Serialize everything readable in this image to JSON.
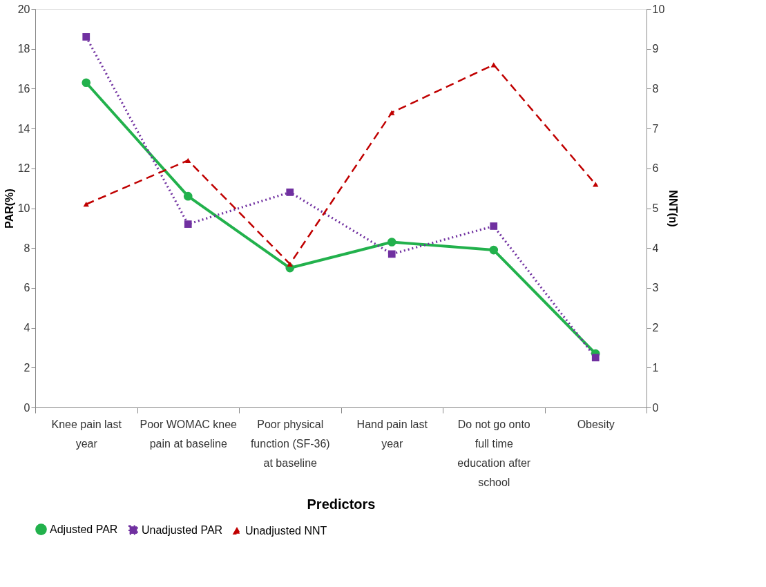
{
  "chart_data": {
    "type": "line",
    "xlabel": "Predictors",
    "ylabel": "PAR(%)",
    "y2label": "NNT(n)",
    "categories": [
      "Knee pain last year",
      "Poor WOMAC knee pain at baseline",
      "Poor physical function (SF-36)  at baseline",
      "Hand pain last year",
      "Do not go onto full time education after school",
      "Obesity"
    ],
    "series": [
      {
        "name": "Adjusted PAR",
        "color": "#22b14c",
        "marker": "circle",
        "line_style": "solid",
        "values": [
          16.3,
          10.6,
          7.0,
          8.3,
          7.9,
          2.7
        ]
      },
      {
        "name": "Unadjusted PAR",
        "color": "#7030a0",
        "marker": "square",
        "line_style": "dotted",
        "values": [
          18.6,
          9.2,
          10.8,
          7.7,
          9.1,
          2.5
        ]
      },
      {
        "name": "Unadjusted NNT",
        "color": "#c00000",
        "marker": "triangle",
        "line_style": "dashed",
        "axis": "y2",
        "values": [
          5.1,
          6.2,
          3.6,
          7.4,
          8.6,
          5.6
        ]
      }
    ],
    "ylim": [
      0,
      20
    ],
    "yticks": [
      0,
      2,
      4,
      6,
      8,
      10,
      12,
      14,
      16,
      18,
      20
    ],
    "y2lim": [
      0,
      10
    ],
    "y2ticks": [
      0,
      1,
      2,
      3,
      4,
      5,
      6,
      7,
      8,
      9,
      10
    ],
    "grid": false,
    "legend": "bottom"
  }
}
